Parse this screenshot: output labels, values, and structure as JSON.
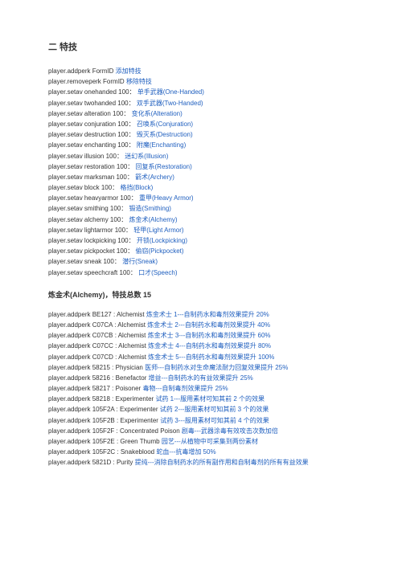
{
  "section_title": "二 特技",
  "commands": [
    {
      "prefix": "player.addperk   FormID",
      "blue": "添加特技"
    },
    {
      "prefix": "player.removeperk FormID",
      "blue": "移除特技"
    },
    {
      "prefix": "player.setav onehanded 100：",
      "blue": "单手武器(One-Handed)"
    },
    {
      "prefix": "player.setav twohanded 100：",
      "blue": "双手武器(Two-Handed)"
    },
    {
      "prefix": "player.setav alteration 100：",
      "blue": "变化系(Alteration)"
    },
    {
      "prefix": "player.setav conjuration 100：",
      "blue": "召唤系(Conjuration)"
    },
    {
      "prefix": "player.setav destruction 100：",
      "blue": "毁灭系(Destruction)"
    },
    {
      "prefix": "player.setav enchanting 100：",
      "blue": "附魔(Enchanting)"
    },
    {
      "prefix": "player.setav illusion 100：",
      "blue": "迷幻系(Illusion)"
    },
    {
      "prefix": "player.setav restoration 100：",
      "blue": "回复系(Restoration)"
    },
    {
      "prefix": "player.setav marksman 100：",
      "blue": "箭术(Archery)"
    },
    {
      "prefix": "player.setav block 100：",
      "blue": "格挡(Block)"
    },
    {
      "prefix": "player.setav heavyarmor 100：",
      "blue": "重甲(Heavy Armor)"
    },
    {
      "prefix": "player.setav smithing 100：",
      "blue": "锻造(Smithing)"
    },
    {
      "prefix": "player.setav alchemy 100：",
      "blue": "炼金术(Alchemy)"
    },
    {
      "prefix": "player.setav lightarmor 100：",
      "blue": "轻甲(Light Armor)"
    },
    {
      "prefix": "player.setav lockpicking 100：",
      "blue": "开锁(Lockpicking)"
    },
    {
      "prefix": "player.setav pickpocket 100：",
      "blue": "偷窃(Pickpocket)"
    },
    {
      "prefix": "player.setav sneak 100：",
      "blue": "潜行(Sneak)"
    },
    {
      "prefix": "player.setav speechcraft 100：",
      "blue": "口才(Speech)"
    }
  ],
  "alchemy_title": "炼金术(Alchemy)，特技总数 15",
  "alchemy": [
    {
      "prefix": "player.addperk BE127 : Alchemist ",
      "blue": "炼金术士 1---自制药水和毒剂效果提升 20%"
    },
    {
      "prefix": "player.addperk C07CA : Alchemist ",
      "blue": "炼金术士 2---自制药水和毒剂效果提升 40%"
    },
    {
      "prefix": "player.addperk C07CB : Alchemist ",
      "blue": "炼金术士 3---自制药水和毒剂效果提升 60%"
    },
    {
      "prefix": "player.addperk C07CC : Alchemist ",
      "blue": "炼金术士 4---自制药水和毒剂效果提升 80%"
    },
    {
      "prefix": "player.addperk C07CD : Alchemist ",
      "blue": "炼金术士 5---自制药水和毒剂效果提升 100%"
    },
    {
      "prefix": "player.addperk 58215 : Physician ",
      "blue": "医师---自制药水对生命魔法耐力回复效果提升 25%"
    },
    {
      "prefix": "player.addperk 58216 : Benefactor ",
      "blue": "增益---自制药水的有益效果提升 25%"
    },
    {
      "prefix": "player.addperk 58217 : Poisoner ",
      "blue": "毒物---自制毒剂效果提升 25%"
    },
    {
      "prefix": "player.addperk 58218 : Experimenter ",
      "blue": "试药 1---服用素材可知其前 2 个的效果"
    },
    {
      "prefix": "player.addperk 105F2A : Experimenter ",
      "blue": "试药 2---服用素材可知其前 3 个的效果"
    },
    {
      "prefix": "player.addperk 105F2B : Experimenter ",
      "blue": "试药 3---服用素材可知其前 4 个的效果"
    },
    {
      "prefix": "player.addperk 105F2F : Concentrated Poison ",
      "blue": "剧毒---武器涂毒有效攻击次数加倍"
    },
    {
      "prefix": "player.addperk 105F2E : Green Thumb ",
      "blue": "园艺---从植物中可采集到两份素材"
    },
    {
      "prefix": "player.addperk 105F2C : Snakeblood ",
      "blue": "蛇血---抗毒增加 50%"
    },
    {
      "prefix": "player.addperk 5821D : Purity ",
      "blue": "提纯---消除自制药水的所有副作用和自制毒剂的所有有益效果"
    }
  ]
}
